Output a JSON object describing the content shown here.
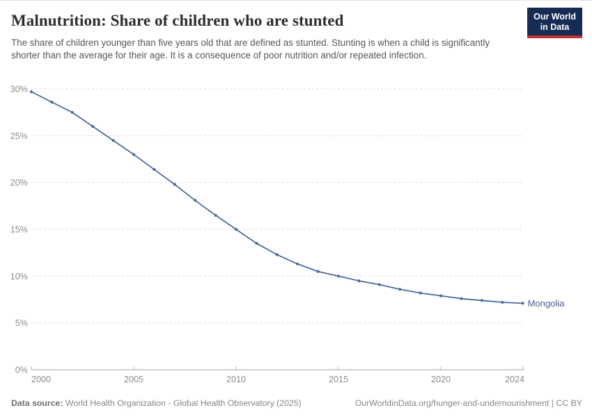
{
  "header": {
    "title": "Malnutrition: Share of children who are stunted",
    "subtitle": "The share of children younger than five years old that are defined as stunted. Stunting is when a child is significantly shorter than the average for their age. It is a consequence of poor nutrition and/or repeated infection.",
    "logo": {
      "line1": "Our World",
      "line2": "in Data"
    }
  },
  "chart_data": {
    "type": "line",
    "title": "Malnutrition: Share of children who are stunted",
    "xlabel": "",
    "ylabel": "",
    "unit": "%",
    "xlim": [
      2000,
      2024
    ],
    "ylim": [
      0,
      30
    ],
    "grid": "horizontal-dashed",
    "legend_position": "end-of-line-label",
    "x": [
      2000,
      2001,
      2002,
      2003,
      2004,
      2005,
      2006,
      2007,
      2008,
      2009,
      2010,
      2011,
      2012,
      2013,
      2014,
      2015,
      2016,
      2017,
      2018,
      2019,
      2020,
      2021,
      2022,
      2023,
      2024
    ],
    "series": [
      {
        "name": "Mongolia",
        "color": "#4C6A9C",
        "values": [
          29.7,
          28.6,
          27.5,
          26.0,
          24.5,
          23.0,
          21.4,
          19.8,
          18.1,
          16.5,
          15.0,
          13.5,
          12.3,
          11.3,
          10.5,
          10.0,
          9.5,
          9.1,
          8.6,
          8.2,
          7.9,
          7.6,
          7.4,
          7.2,
          7.1
        ]
      }
    ],
    "xtick_values": [
      2000,
      2005,
      2010,
      2015,
      2020,
      2024
    ],
    "xtick_labels": [
      "2000",
      "2005",
      "2010",
      "2015",
      "2020",
      "2024"
    ],
    "ytick_values": [
      0,
      5,
      10,
      15,
      20,
      25,
      30
    ],
    "ytick_labels": [
      "0%",
      "5%",
      "10%",
      "15%",
      "20%",
      "25%",
      "30%"
    ]
  },
  "footer": {
    "data_source_label": "Data source:",
    "data_source_value": "World Health Organization - Global Health Observatory (2025)",
    "attribution": "OurWorldinData.org/hunger-and-undernourishment | CC BY"
  },
  "colors": {
    "accent_line": "#4C6A9C",
    "entity_label": "#44618f",
    "logo_bg": "#172c54",
    "logo_stripe": "#c72f38",
    "gridline": "#d9d9d9",
    "axis_line": "#a5a5a5",
    "tick_mark": "#bdbdbd",
    "tick_text": "#8b8b8b",
    "title_text": "#2d2d2d",
    "subtitle_text": "#565656",
    "footer_text": "#868686"
  }
}
